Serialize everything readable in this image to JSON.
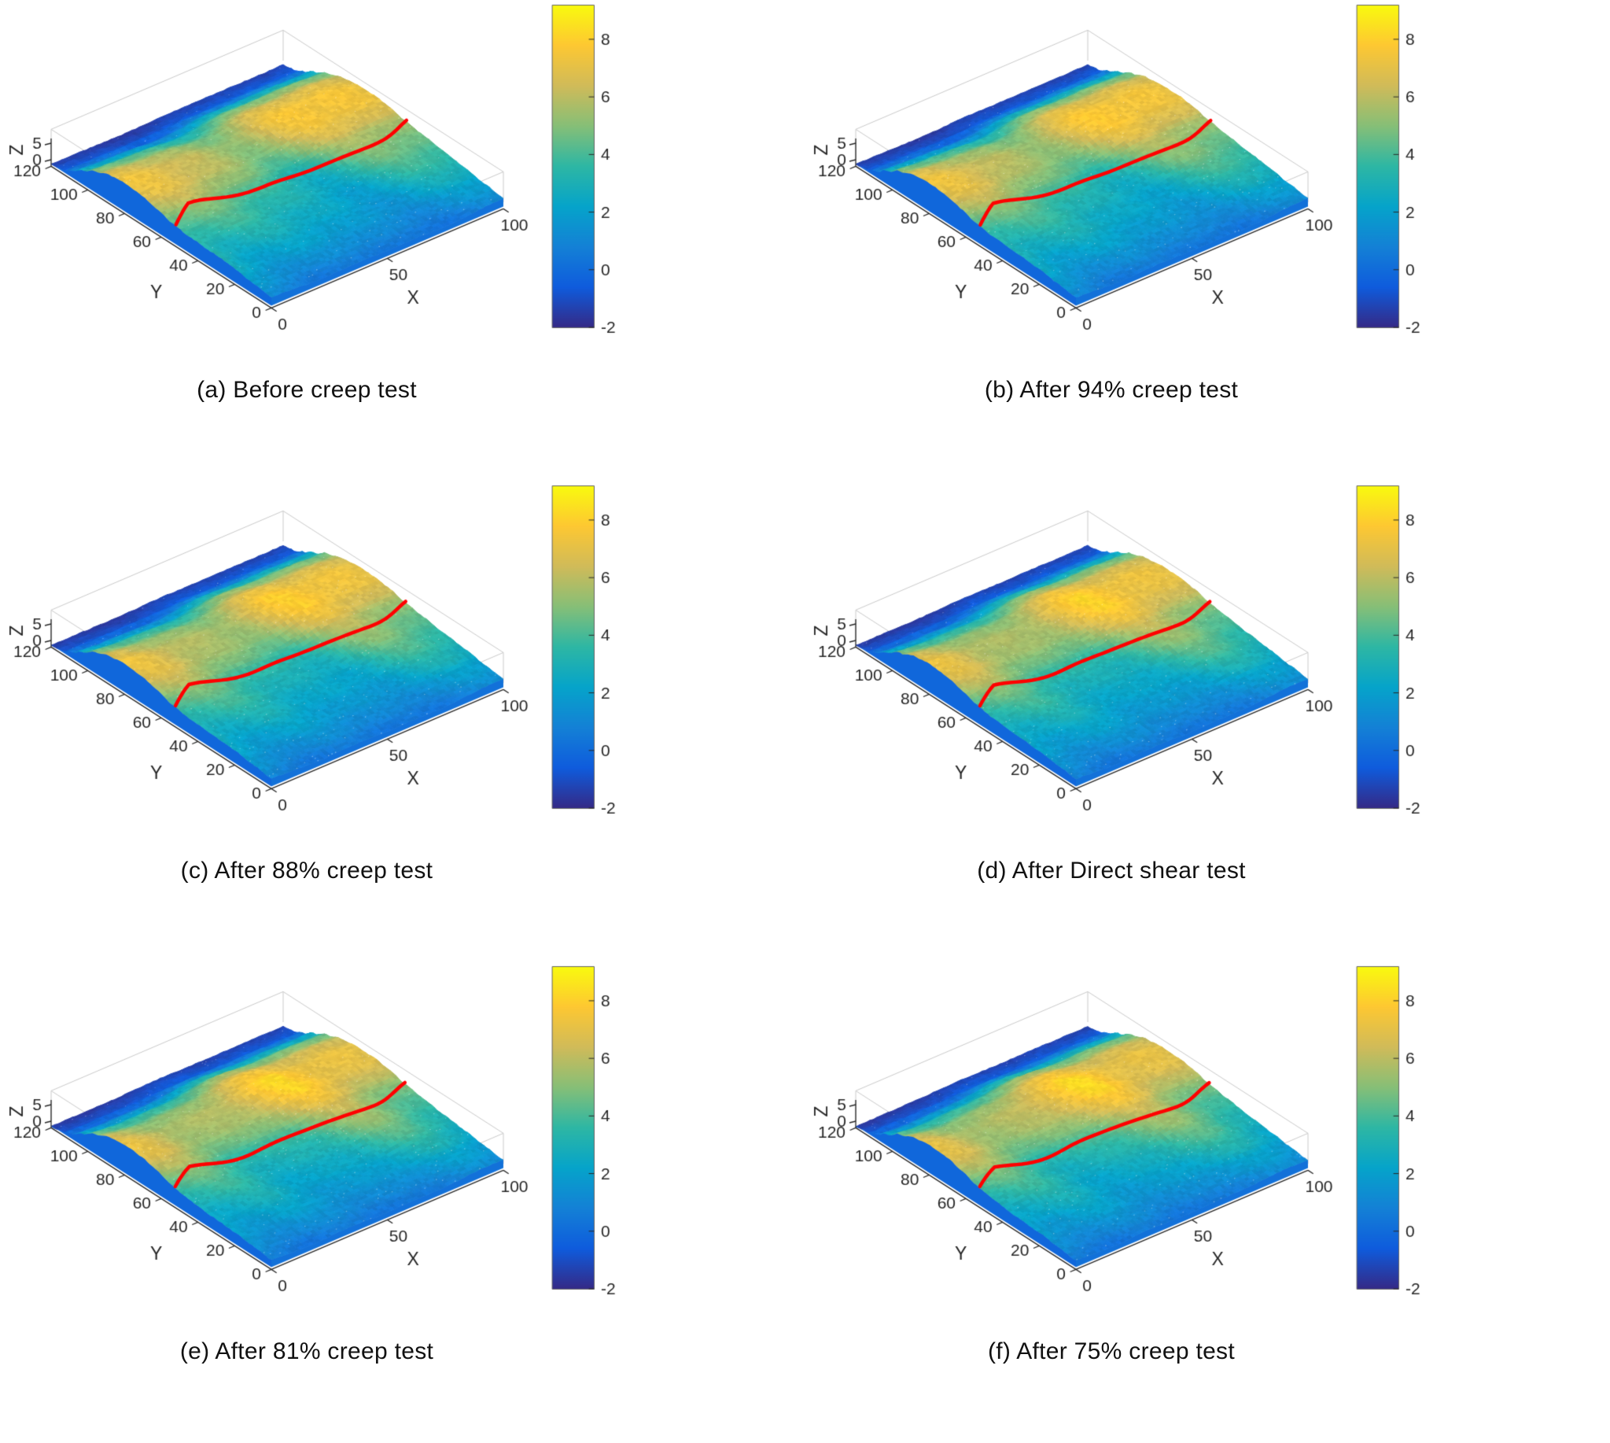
{
  "page": {
    "background": "#ffffff"
  },
  "chart_data": [
    {
      "type": "surface",
      "title": "(a) Before creep test",
      "xlabel": "X",
      "ylabel": "Y",
      "zlabel": "Z",
      "x_ticks": [
        0,
        50,
        100
      ],
      "y_ticks": [
        0,
        20,
        40,
        60,
        80,
        100,
        120
      ],
      "z_ticks": [
        0,
        5
      ],
      "x_range": [
        0,
        100
      ],
      "y_range": [
        0,
        120
      ],
      "colorbar": {
        "ticks": [
          8,
          6,
          4,
          2,
          0,
          -2
        ],
        "range": [
          -2,
          9.2
        ],
        "colormap": "parula"
      },
      "annotations": [
        {
          "type": "profile-line",
          "color": "#ff0000",
          "along": "x",
          "at_y": 53
        }
      ]
    },
    {
      "type": "surface",
      "title": "(b) After 94% creep test",
      "xlabel": "X",
      "ylabel": "Y",
      "zlabel": "Z",
      "x_ticks": [
        0,
        50,
        100
      ],
      "y_ticks": [
        0,
        20,
        40,
        60,
        80,
        100,
        120
      ],
      "z_ticks": [
        0,
        5
      ],
      "x_range": [
        0,
        100
      ],
      "y_range": [
        0,
        120
      ],
      "colorbar": {
        "ticks": [
          8,
          6,
          4,
          2,
          0,
          -2
        ],
        "range": [
          -2,
          9.2
        ],
        "colormap": "parula"
      },
      "annotations": [
        {
          "type": "profile-line",
          "color": "#ff0000",
          "along": "x",
          "at_y": 53
        }
      ]
    },
    {
      "type": "surface",
      "title": "(c) After 88% creep test",
      "xlabel": "X",
      "ylabel": "Y",
      "zlabel": "Z",
      "x_ticks": [
        0,
        50,
        100
      ],
      "y_ticks": [
        0,
        20,
        40,
        60,
        80,
        100,
        120
      ],
      "z_ticks": [
        0,
        5
      ],
      "x_range": [
        0,
        100
      ],
      "y_range": [
        0,
        120
      ],
      "colorbar": {
        "ticks": [
          8,
          6,
          4,
          2,
          0,
          -2
        ],
        "range": [
          -2,
          9.2
        ],
        "colormap": "parula"
      },
      "annotations": [
        {
          "type": "profile-line",
          "color": "#ff0000",
          "along": "x",
          "at_y": 53
        }
      ]
    },
    {
      "type": "surface",
      "title": "(d) After Direct shear test",
      "xlabel": "X",
      "ylabel": "Y",
      "zlabel": "Z",
      "x_ticks": [
        0,
        50,
        100
      ],
      "y_ticks": [
        0,
        20,
        40,
        60,
        80,
        100,
        120
      ],
      "z_ticks": [
        0,
        5
      ],
      "x_range": [
        0,
        100
      ],
      "y_range": [
        0,
        120
      ],
      "colorbar": {
        "ticks": [
          8,
          6,
          4,
          2,
          0,
          -2
        ],
        "range": [
          -2,
          9.2
        ],
        "colormap": "parula"
      },
      "annotations": [
        {
          "type": "profile-line",
          "color": "#ff0000",
          "along": "x",
          "at_y": 53
        }
      ]
    },
    {
      "type": "surface",
      "title": "(e) After 81% creep test",
      "xlabel": "X",
      "ylabel": "Y",
      "zlabel": "Z",
      "x_ticks": [
        0,
        50,
        100
      ],
      "y_ticks": [
        0,
        20,
        40,
        60,
        80,
        100,
        120
      ],
      "z_ticks": [
        0,
        5
      ],
      "x_range": [
        0,
        100
      ],
      "y_range": [
        0,
        120
      ],
      "colorbar": {
        "ticks": [
          8,
          6,
          4,
          2,
          0,
          -2
        ],
        "range": [
          -2,
          9.2
        ],
        "colormap": "parula"
      },
      "annotations": [
        {
          "type": "profile-line",
          "color": "#ff0000",
          "along": "x",
          "at_y": 53
        }
      ]
    },
    {
      "type": "surface",
      "title": "(f) After 75% creep test",
      "xlabel": "X",
      "ylabel": "Y",
      "zlabel": "Z",
      "x_ticks": [
        0,
        50,
        100
      ],
      "y_ticks": [
        0,
        20,
        40,
        60,
        80,
        100,
        120
      ],
      "z_ticks": [
        0,
        5
      ],
      "x_range": [
        0,
        100
      ],
      "y_range": [
        0,
        120
      ],
      "colorbar": {
        "ticks": [
          8,
          6,
          4,
          2,
          0,
          -2
        ],
        "range": [
          -2,
          9.2
        ],
        "colormap": "parula"
      },
      "annotations": [
        {
          "type": "profile-line",
          "color": "#ff0000",
          "along": "x",
          "at_y": 53
        }
      ]
    }
  ],
  "surface_model": {
    "z_profile_anchors": [
      [
        0,
        0.6
      ],
      [
        10,
        1.4
      ],
      [
        20,
        2.2
      ],
      [
        32,
        3.0
      ],
      [
        44,
        3.8
      ],
      [
        54,
        4.6
      ],
      [
        62,
        5.8
      ],
      [
        70,
        6.6
      ],
      [
        80,
        6.8
      ],
      [
        88,
        6.2
      ],
      [
        96,
        4.6
      ],
      [
        103,
        2.4
      ],
      [
        109,
        0.4
      ],
      [
        114,
        -0.9
      ],
      [
        120,
        -1.4
      ]
    ],
    "z_texture_amplitude": 1.15,
    "colormap_stops": [
      "#352a87",
      "#0f5cdd",
      "#1481d6",
      "#06a4ca",
      "#2eb7a4",
      "#87bf77",
      "#d1bb59",
      "#fec832",
      "#f9fb0e"
    ],
    "red_line_color": "#ff0000",
    "axis_color": "#262626",
    "box_color": "#c9c9c9"
  }
}
